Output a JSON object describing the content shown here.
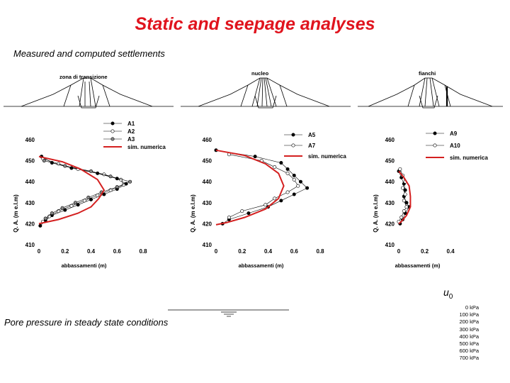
{
  "slide": {
    "title": "Static and seepage analyses",
    "subtitle": "Measured and computed settlements",
    "caption": "Pore pressure in steady state conditions"
  },
  "dams": [
    {
      "label": "zona di transizione"
    },
    {
      "label": "nucleo"
    },
    {
      "label": "fianchi"
    }
  ],
  "legend_pressure": {
    "symbol": "u",
    "subscript": "0",
    "entries": [
      "0 kPa",
      "100 kPa",
      "200 kPa",
      "300 kPa",
      "400 kPa",
      "500 kPa",
      "600 kPa",
      "700 kPa"
    ]
  },
  "chart_data": [
    {
      "type": "line",
      "xlabel": "abbassamenti (m)",
      "ylabel": "Q. A. (m e.l.m)",
      "xlim": [
        0,
        0.8
      ],
      "ylim": [
        410,
        460
      ],
      "xticks": [
        "0",
        "0.2",
        "0.4",
        "0.6",
        "0.8"
      ],
      "yticks": [
        "410",
        "420",
        "430",
        "440",
        "450",
        "460"
      ],
      "legend_position": "top-right",
      "series": [
        {
          "name": "A1",
          "marker": "filled",
          "points": [
            [
              0.02,
              452
            ],
            [
              0.1,
              449
            ],
            [
              0.25,
              446.5
            ],
            [
              0.45,
              444
            ],
            [
              0.6,
              441.5
            ],
            [
              0.67,
              439
            ],
            [
              0.6,
              436.5
            ],
            [
              0.5,
              434
            ],
            [
              0.4,
              431.5
            ],
            [
              0.3,
              429
            ],
            [
              0.2,
              426.5
            ],
            [
              0.1,
              424
            ],
            [
              0.05,
              421.5
            ],
            [
              0.01,
              419
            ]
          ]
        },
        {
          "name": "A2",
          "marker": "open",
          "points": [
            [
              0.03,
              451
            ],
            [
              0.15,
              448.5
            ],
            [
              0.3,
              446
            ],
            [
              0.5,
              443.5
            ],
            [
              0.63,
              441
            ],
            [
              0.65,
              438.5
            ],
            [
              0.55,
              436
            ],
            [
              0.45,
              433.5
            ],
            [
              0.35,
              431
            ],
            [
              0.25,
              428.5
            ],
            [
              0.15,
              426
            ],
            [
              0.08,
              423.5
            ],
            [
              0.03,
              421
            ]
          ]
        },
        {
          "name": "A3",
          "marker": "half",
          "points": [
            [
              0.04,
              450
            ],
            [
              0.2,
              447.5
            ],
            [
              0.4,
              445
            ],
            [
              0.55,
              442.5
            ],
            [
              0.7,
              440
            ],
            [
              0.6,
              437.5
            ],
            [
              0.48,
              435
            ],
            [
              0.38,
              432.5
            ],
            [
              0.28,
              430
            ],
            [
              0.18,
              427.5
            ],
            [
              0.1,
              425
            ],
            [
              0.05,
              422.5
            ]
          ]
        },
        {
          "name": "sim. numerica",
          "marker": "none",
          "points": [
            [
              0,
              452
            ],
            [
              0.18,
              449.5
            ],
            [
              0.32,
              446
            ],
            [
              0.45,
              441
            ],
            [
              0.5,
              436
            ],
            [
              0.46,
              432
            ],
            [
              0.4,
              428
            ],
            [
              0.3,
              425
            ],
            [
              0.15,
              422
            ],
            [
              0,
              420
            ]
          ]
        }
      ]
    },
    {
      "type": "line",
      "xlabel": "abbassamenti (m)",
      "ylabel": "Q. A. (m e.l.m)",
      "xlim": [
        0,
        0.8
      ],
      "ylim": [
        410,
        460
      ],
      "xticks": [
        "0",
        "0.2",
        "0.4",
        "0.6",
        "0.8"
      ],
      "yticks": [
        "410",
        "420",
        "430",
        "440",
        "450",
        "460"
      ],
      "legend_position": "top-right",
      "series": [
        {
          "name": "A5",
          "marker": "filled",
          "points": [
            [
              0,
              455
            ],
            [
              0.3,
              452
            ],
            [
              0.5,
              449
            ],
            [
              0.55,
              446
            ],
            [
              0.6,
              443
            ],
            [
              0.65,
              440
            ],
            [
              0.7,
              437
            ],
            [
              0.6,
              434
            ],
            [
              0.5,
              431
            ],
            [
              0.4,
              428
            ],
            [
              0.25,
              425
            ],
            [
              0.1,
              422
            ],
            [
              0.05,
              420
            ]
          ]
        },
        {
          "name": "A7",
          "marker": "open",
          "points": [
            [
              0.1,
              453
            ],
            [
              0.35,
              450
            ],
            [
              0.45,
              447
            ],
            [
              0.55,
              444
            ],
            [
              0.6,
              441
            ],
            [
              0.63,
              438
            ],
            [
              0.55,
              435
            ],
            [
              0.45,
              432
            ],
            [
              0.38,
              429
            ],
            [
              0.2,
              426
            ],
            [
              0.1,
              423
            ]
          ]
        },
        {
          "name": "sim. numerica",
          "marker": "none",
          "points": [
            [
              0,
              455
            ],
            [
              0.22,
              452.5
            ],
            [
              0.38,
              448.5
            ],
            [
              0.48,
              444
            ],
            [
              0.52,
              438
            ],
            [
              0.48,
              432
            ],
            [
              0.38,
              427
            ],
            [
              0.22,
              423
            ],
            [
              0.08,
              420.5
            ],
            [
              0,
              419.5
            ]
          ]
        }
      ]
    },
    {
      "type": "line",
      "xlabel": "abbassamenti (m)",
      "ylabel": "Q. A. (m e.l.m)",
      "xlim": [
        0,
        0.4
      ],
      "ylim": [
        410,
        460
      ],
      "xticks": [
        "0",
        "0.2",
        "0.4"
      ],
      "yticks": [
        "410",
        "420",
        "430",
        "440",
        "450",
        "460"
      ],
      "legend_position": "top-right",
      "series": [
        {
          "name": "A9",
          "marker": "filled",
          "points": [
            [
              0,
              445
            ],
            [
              0.02,
              442
            ],
            [
              0.04,
              439
            ],
            [
              0.05,
              436
            ],
            [
              0.04,
              433
            ],
            [
              0.06,
              430
            ],
            [
              0.08,
              428
            ],
            [
              0.05,
              425
            ],
            [
              0.03,
              422
            ],
            [
              0.01,
              420
            ]
          ]
        },
        {
          "name": "A10",
          "marker": "open",
          "points": [
            [
              0.01,
              446
            ],
            [
              0.03,
              443
            ],
            [
              0.05,
              440
            ],
            [
              0.03,
              437
            ],
            [
              0.05,
              434
            ],
            [
              0.04,
              431
            ],
            [
              0.06,
              428
            ],
            [
              0.04,
              426
            ],
            [
              0.02,
              423
            ],
            [
              0,
              421
            ]
          ]
        },
        {
          "name": "sim. numerica",
          "marker": "none",
          "points": [
            [
              0,
              445
            ],
            [
              0.04,
              442
            ],
            [
              0.08,
              438
            ],
            [
              0.09,
              433
            ],
            [
              0.09,
              428
            ],
            [
              0.06,
              424
            ],
            [
              0.02,
              421
            ],
            [
              0,
              420
            ]
          ]
        }
      ]
    }
  ]
}
